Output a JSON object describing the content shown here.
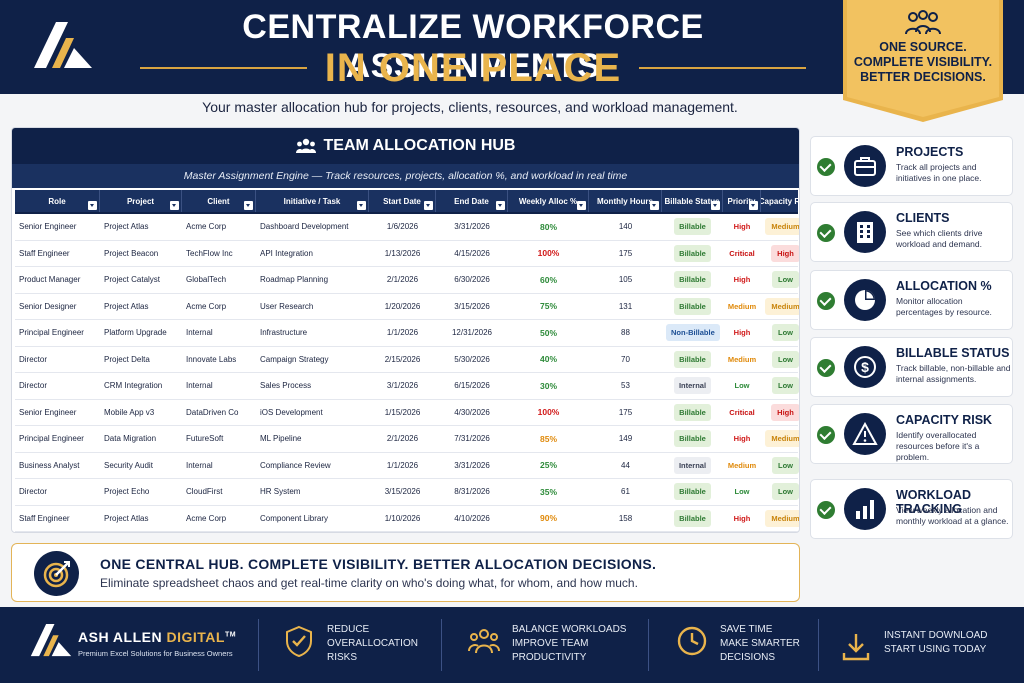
{
  "header": {
    "title_line1": "CENTRALIZE WORKFORCE ASSIGNMENTS",
    "title_line2": "IN ONE PLACE",
    "banner_line1": "ONE SOURCE.",
    "banner_line2": "COMPLETE VISIBILITY.",
    "banner_line3": "BETTER DECISIONS."
  },
  "subtitle": "Your master allocation hub for projects, clients, resources, and workload management.",
  "table": {
    "title": "TEAM ALLOCATION HUB",
    "subtitle": "Master Assignment Engine — Track resources, projects, allocation %, and workload in real time",
    "columns": [
      "Role",
      "Project",
      "Client",
      "Initiative / Task",
      "Start Date",
      "End Date",
      "Weekly Alloc %",
      "Monthly Hours",
      "Billable Status",
      "Priority",
      "Capacity Risk"
    ],
    "rows": [
      {
        "role": "Senior Engineer",
        "project": "Project Atlas",
        "client": "Acme Corp",
        "task": "Dashboard Development",
        "start": "1/6/2026",
        "end": "3/31/2026",
        "alloc": "80%",
        "hours": "140",
        "billable": "Billable",
        "priority": "High",
        "risk": "Medium"
      },
      {
        "role": "Staff Engineer",
        "project": "Project Beacon",
        "client": "TechFlow Inc",
        "task": "API Integration",
        "start": "1/13/2026",
        "end": "4/15/2026",
        "alloc": "100%",
        "hours": "175",
        "billable": "Billable",
        "priority": "Critical",
        "risk": "High"
      },
      {
        "role": "Product Manager",
        "project": "Project Catalyst",
        "client": "GlobalTech",
        "task": "Roadmap Planning",
        "start": "2/1/2026",
        "end": "6/30/2026",
        "alloc": "60%",
        "hours": "105",
        "billable": "Billable",
        "priority": "High",
        "risk": "Low"
      },
      {
        "role": "Senior Designer",
        "project": "Project Atlas",
        "client": "Acme Corp",
        "task": "User Research",
        "start": "1/20/2026",
        "end": "3/15/2026",
        "alloc": "75%",
        "hours": "131",
        "billable": "Billable",
        "priority": "Medium",
        "risk": "Medium"
      },
      {
        "role": "Principal Engineer",
        "project": "Platform Upgrade",
        "client": "Internal",
        "task": "Infrastructure",
        "start": "1/1/2026",
        "end": "12/31/2026",
        "alloc": "50%",
        "hours": "88",
        "billable": "Non-Billable",
        "priority": "High",
        "risk": "Low"
      },
      {
        "role": "Director",
        "project": "Project Delta",
        "client": "Innovate Labs",
        "task": "Campaign Strategy",
        "start": "2/15/2026",
        "end": "5/30/2026",
        "alloc": "40%",
        "hours": "70",
        "billable": "Billable",
        "priority": "Medium",
        "risk": "Low"
      },
      {
        "role": "Director",
        "project": "CRM Integration",
        "client": "Internal",
        "task": "Sales Process",
        "start": "3/1/2026",
        "end": "6/15/2026",
        "alloc": "30%",
        "hours": "53",
        "billable": "Internal",
        "priority": "Low",
        "risk": "Low"
      },
      {
        "role": "Senior Engineer",
        "project": "Mobile App v3",
        "client": "DataDriven Co",
        "task": "iOS Development",
        "start": "1/15/2026",
        "end": "4/30/2026",
        "alloc": "100%",
        "hours": "175",
        "billable": "Billable",
        "priority": "Critical",
        "risk": "High"
      },
      {
        "role": "Principal Engineer",
        "project": "Data Migration",
        "client": "FutureSoft",
        "task": "ML Pipeline",
        "start": "2/1/2026",
        "end": "7/31/2026",
        "alloc": "85%",
        "hours": "149",
        "billable": "Billable",
        "priority": "High",
        "risk": "Medium"
      },
      {
        "role": "Business Analyst",
        "project": "Security Audit",
        "client": "Internal",
        "task": "Compliance Review",
        "start": "1/1/2026",
        "end": "3/31/2026",
        "alloc": "25%",
        "hours": "44",
        "billable": "Internal",
        "priority": "Medium",
        "risk": "Low"
      },
      {
        "role": "Director",
        "project": "Project Echo",
        "client": "CloudFirst",
        "task": "HR System",
        "start": "3/15/2026",
        "end": "8/31/2026",
        "alloc": "35%",
        "hours": "61",
        "billable": "Billable",
        "priority": "Low",
        "risk": "Low"
      },
      {
        "role": "Staff Engineer",
        "project": "Project Atlas",
        "client": "Acme Corp",
        "task": "Component Library",
        "start": "1/10/2026",
        "end": "4/10/2026",
        "alloc": "90%",
        "hours": "158",
        "billable": "Billable",
        "priority": "High",
        "risk": "Medium"
      }
    ]
  },
  "features": [
    {
      "title": "PROJECTS",
      "desc": "Track all projects and initiatives in one place.",
      "icon": "briefcase-icon"
    },
    {
      "title": "CLIENTS",
      "desc": "See which clients drive workload and demand.",
      "icon": "building-icon"
    },
    {
      "title": "ALLOCATION %",
      "desc": "Monitor allocation percentages by resource.",
      "icon": "pie-chart-icon"
    },
    {
      "title": "BILLABLE STATUS",
      "desc": "Track billable, non-billable and internal assignments.",
      "icon": "dollar-icon"
    },
    {
      "title": "CAPACITY RISK",
      "desc": "Identify overallocated resources before it's a problem.",
      "icon": "warning-icon"
    },
    {
      "title": "WORKLOAD TRACKING",
      "desc": "View weekly allocation and monthly workload at a glance.",
      "icon": "bar-chart-icon"
    }
  ],
  "callout": {
    "title": "ONE CENTRAL HUB. COMPLETE VISIBILITY. BETTER ALLOCATION DECISIONS.",
    "desc": "Eliminate spreadsheet chaos and get real-time clarity on who's doing what, for whom, and how much."
  },
  "footer": {
    "brand_a": "ASH ALLEN ",
    "brand_b": "DIGITAL",
    "brand_tm": "TM",
    "tagline": "Premium Excel Solutions for Business Owners",
    "items": [
      {
        "lines": [
          "REDUCE",
          "OVERALLOCATION",
          "RISKS"
        ],
        "icon": "shield-check-icon"
      },
      {
        "lines": [
          "BALANCE WORKLOADS",
          "IMPROVE TEAM",
          "PRODUCTIVITY"
        ],
        "icon": "team-icon"
      },
      {
        "lines": [
          "SAVE TIME",
          "MAKE SMARTER",
          "DECISIONS"
        ],
        "icon": "clock-icon"
      },
      {
        "lines": [
          "INSTANT DOWNLOAD",
          "START USING TODAY"
        ],
        "icon": "download-icon"
      }
    ]
  },
  "colors": {
    "navy": "#0f2148",
    "gold": "#e9b44c",
    "green": "#2e8b3a",
    "red": "#d11a1a",
    "orange": "#e08a0b"
  }
}
